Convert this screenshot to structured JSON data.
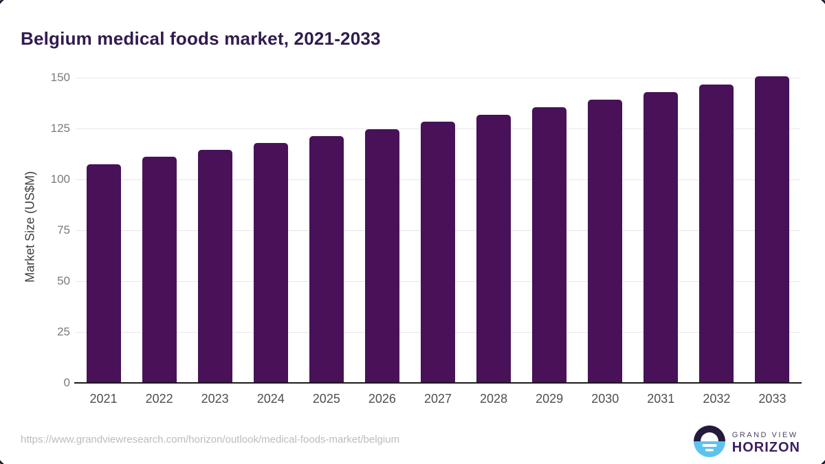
{
  "title": "Belgium medical foods market, 2021-2033",
  "chart_data": {
    "type": "bar",
    "categories": [
      "2021",
      "2022",
      "2023",
      "2024",
      "2025",
      "2026",
      "2027",
      "2028",
      "2029",
      "2030",
      "2031",
      "2032",
      "2033"
    ],
    "values": [
      107.4,
      111.0,
      114.5,
      118.0,
      121.2,
      124.7,
      128.3,
      131.8,
      135.4,
      139.1,
      142.8,
      146.6,
      150.6
    ],
    "title": "Belgium medical foods market, 2021-2033",
    "xlabel": "",
    "ylabel": "Market Size (US$M)",
    "ylim": [
      0,
      156
    ],
    "yticks": [
      0,
      25,
      50,
      75,
      100,
      125,
      150
    ],
    "grid": "horizontal",
    "legend": "none",
    "bar_color": "#481158"
  },
  "footer": {
    "source_url": "https://www.grandviewresearch.com/horizon/outlook/medical-foods-market/belgium",
    "logo": {
      "line1": "GRAND VIEW",
      "line2": "HORIZON"
    }
  },
  "colors": {
    "title_text": "#301b4d",
    "bar": "#481158",
    "gridline": "#e6e6e6",
    "axis_line": "#1a1a1a",
    "y_tick_text": "#7a7a7a",
    "x_tick_text": "#4e4e4e",
    "url_text": "#bcbcbc",
    "logo_dark": "#241a3e",
    "logo_blue": "#5cc3f0"
  }
}
